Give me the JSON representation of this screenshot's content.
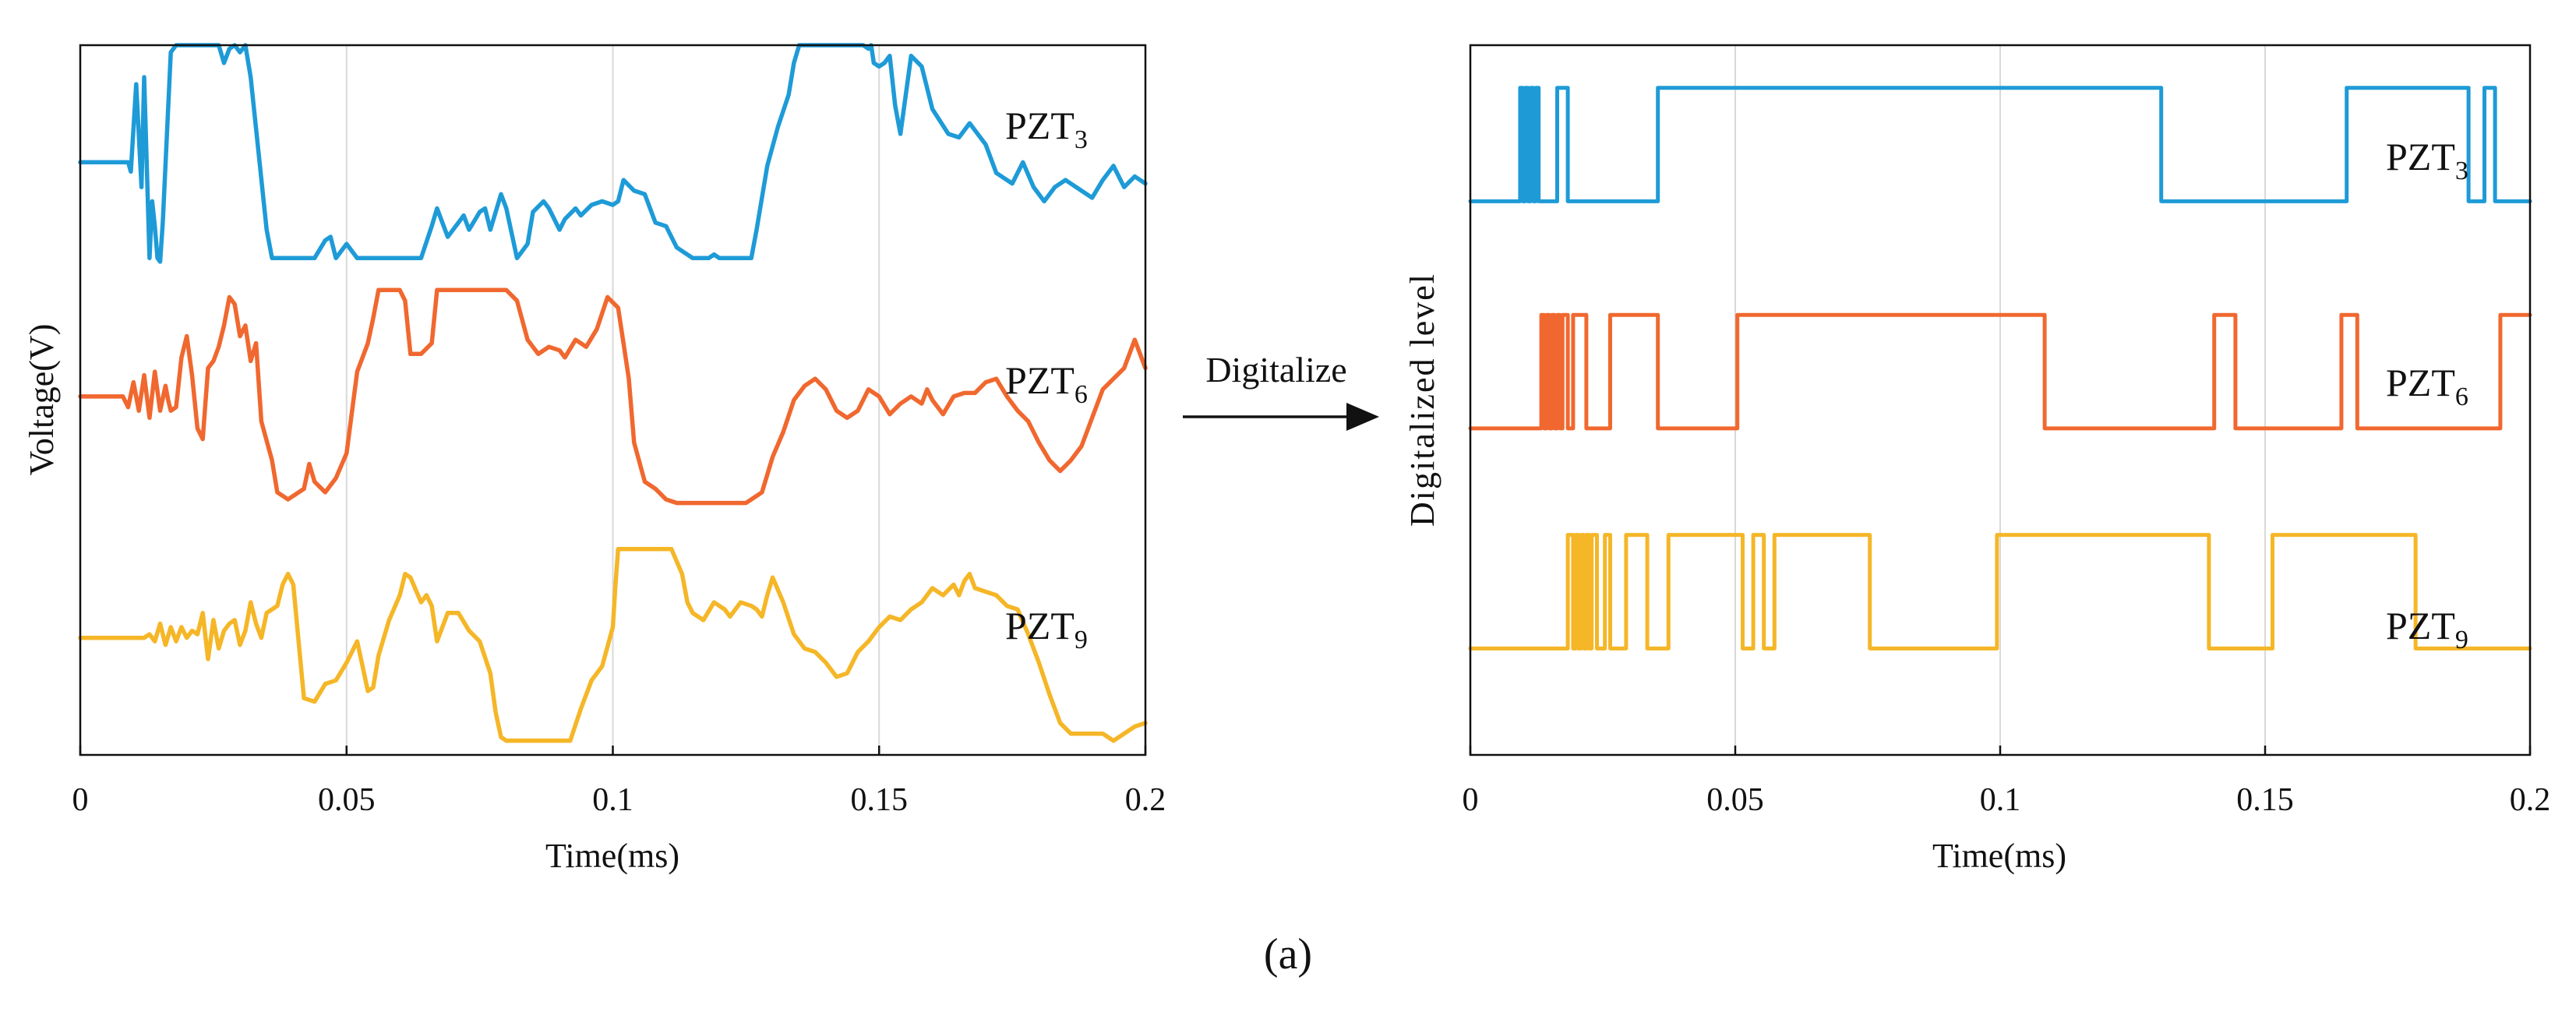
{
  "colors": {
    "pzt3": "#1E9BD7",
    "pzt6": "#F0682F",
    "pzt9": "#F5B627",
    "axis": "#111111",
    "grid": "#D9D9D9",
    "text": "#111111"
  },
  "caption": "(a)",
  "arrow": {
    "label": "Digitalize"
  },
  "chart_data": [
    {
      "type": "line",
      "id": "analog",
      "title": "",
      "xlabel": "Time(ms)",
      "ylabel": "Voltage(V)",
      "xlim": [
        0,
        0.2
      ],
      "xticks": [
        0,
        0.05,
        0.1,
        0.15,
        0.2
      ],
      "xtick_labels": [
        "0",
        "0.05",
        "0.1",
        "0.15",
        "0.2"
      ],
      "ylim": [
        0,
        1
      ],
      "grid": "vertical",
      "series": [
        {
          "name": "PZT3",
          "label_base": "PZT",
          "label_sub": "3",
          "color_key": "pzt3",
          "x": [
            0,
            0.009,
            0.0095,
            0.0105,
            0.0115,
            0.012,
            0.013,
            0.0135,
            0.014,
            0.0145,
            0.015,
            0.0155,
            0.017,
            0.018,
            0.019,
            0.0195,
            0.02,
            0.022,
            0.026,
            0.027,
            0.028,
            0.029,
            0.03,
            0.031,
            0.032,
            0.035,
            0.036,
            0.037,
            0.039,
            0.044,
            0.046,
            0.047,
            0.048,
            0.05,
            0.052,
            0.06,
            0.064,
            0.066,
            0.067,
            0.069,
            0.071,
            0.072,
            0.073,
            0.075,
            0.076,
            0.077,
            0.079,
            0.08,
            0.082,
            0.084,
            0.085,
            0.087,
            0.088,
            0.09,
            0.091,
            0.093,
            0.094,
            0.096,
            0.098,
            0.1,
            0.101,
            0.102,
            0.104,
            0.106,
            0.107,
            0.108,
            0.11,
            0.112,
            0.115,
            0.118,
            0.119,
            0.12,
            0.121,
            0.124,
            0.126,
            0.127,
            0.129,
            0.131,
            0.133,
            0.134,
            0.135,
            0.14,
            0.145,
            0.147,
            0.148,
            0.1485,
            0.149,
            0.15,
            0.151,
            0.152,
            0.153,
            0.154,
            0.156,
            0.158,
            0.16,
            0.163,
            0.165,
            0.167,
            0.17,
            0.172,
            0.175,
            0.177,
            0.179,
            0.181,
            0.183,
            0.185,
            0.188,
            0.19,
            0.192,
            0.194,
            0.196,
            0.198,
            0.2
          ],
          "y": [
            0.835,
            0.835,
            0.822,
            0.945,
            0.8,
            0.955,
            0.7,
            0.78,
            0.745,
            0.7,
            0.695,
            0.75,
            0.99,
            1.0,
            1.0,
            1.0,
            1.0,
            1.0,
            1.0,
            0.975,
            0.995,
            1.0,
            0.99,
            1.0,
            0.955,
            0.74,
            0.7,
            0.7,
            0.7,
            0.7,
            0.725,
            0.73,
            0.7,
            0.72,
            0.7,
            0.7,
            0.7,
            0.745,
            0.77,
            0.73,
            0.75,
            0.76,
            0.74,
            0.765,
            0.77,
            0.74,
            0.79,
            0.77,
            0.7,
            0.72,
            0.765,
            0.78,
            0.77,
            0.74,
            0.755,
            0.77,
            0.76,
            0.775,
            0.78,
            0.775,
            0.78,
            0.81,
            0.795,
            0.79,
            0.77,
            0.75,
            0.745,
            0.715,
            0.7,
            0.7,
            0.705,
            0.7,
            0.7,
            0.7,
            0.7,
            0.74,
            0.83,
            0.885,
            0.93,
            0.975,
            1.0,
            1.0,
            1.0,
            1.0,
            0.995,
            1.0,
            0.975,
            0.97,
            0.975,
            0.985,
            0.915,
            0.875,
            0.985,
            0.97,
            0.91,
            0.875,
            0.87,
            0.89,
            0.86,
            0.82,
            0.805,
            0.835,
            0.8,
            0.78,
            0.8,
            0.81,
            0.795,
            0.785,
            0.81,
            0.83,
            0.8,
            0.815,
            0.805
          ]
        },
        {
          "name": "PZT6",
          "label_base": "PZT",
          "label_sub": "6",
          "color_key": "pzt6",
          "x": [
            0,
            0.008,
            0.009,
            0.01,
            0.011,
            0.012,
            0.013,
            0.014,
            0.015,
            0.016,
            0.0165,
            0.017,
            0.018,
            0.019,
            0.02,
            0.021,
            0.022,
            0.023,
            0.024,
            0.025,
            0.026,
            0.027,
            0.028,
            0.029,
            0.03,
            0.031,
            0.032,
            0.033,
            0.034,
            0.036,
            0.037,
            0.039,
            0.042,
            0.043,
            0.044,
            0.046,
            0.048,
            0.05,
            0.052,
            0.054,
            0.055,
            0.056,
            0.06,
            0.061,
            0.062,
            0.064,
            0.066,
            0.067,
            0.07,
            0.075,
            0.08,
            0.082,
            0.084,
            0.086,
            0.088,
            0.09,
            0.091,
            0.093,
            0.095,
            0.097,
            0.099,
            0.101,
            0.102,
            0.103,
            0.104,
            0.106,
            0.108,
            0.11,
            0.112,
            0.115,
            0.125,
            0.128,
            0.13,
            0.132,
            0.134,
            0.136,
            0.138,
            0.14,
            0.142,
            0.144,
            0.146,
            0.148,
            0.15,
            0.152,
            0.154,
            0.156,
            0.158,
            0.159,
            0.16,
            0.162,
            0.164,
            0.166,
            0.168,
            0.17,
            0.172,
            0.174,
            0.176,
            0.178,
            0.18,
            0.182,
            0.184,
            0.186,
            0.188,
            0.19,
            0.192,
            0.194,
            0.196,
            0.198,
            0.2
          ],
          "y": [
            0.505,
            0.505,
            0.49,
            0.525,
            0.485,
            0.535,
            0.475,
            0.54,
            0.485,
            0.52,
            0.5,
            0.485,
            0.49,
            0.56,
            0.59,
            0.535,
            0.46,
            0.445,
            0.545,
            0.555,
            0.575,
            0.605,
            0.645,
            0.635,
            0.59,
            0.605,
            0.555,
            0.58,
            0.47,
            0.415,
            0.37,
            0.36,
            0.375,
            0.41,
            0.385,
            0.37,
            0.39,
            0.425,
            0.54,
            0.58,
            0.615,
            0.655,
            0.655,
            0.64,
            0.565,
            0.565,
            0.58,
            0.655,
            0.655,
            0.655,
            0.655,
            0.64,
            0.585,
            0.565,
            0.575,
            0.57,
            0.56,
            0.585,
            0.575,
            0.6,
            0.645,
            0.63,
            0.58,
            0.53,
            0.44,
            0.385,
            0.375,
            0.36,
            0.355,
            0.355,
            0.355,
            0.37,
            0.42,
            0.455,
            0.5,
            0.52,
            0.53,
            0.515,
            0.485,
            0.475,
            0.485,
            0.515,
            0.505,
            0.48,
            0.495,
            0.505,
            0.495,
            0.515,
            0.5,
            0.48,
            0.505,
            0.51,
            0.51,
            0.525,
            0.53,
            0.505,
            0.485,
            0.47,
            0.44,
            0.415,
            0.4,
            0.415,
            0.435,
            0.475,
            0.515,
            0.53,
            0.545,
            0.585,
            0.545
          ]
        },
        {
          "name": "PZT9",
          "label_base": "PZT",
          "label_sub": "9",
          "color_key": "pzt9",
          "x": [
            0,
            0.012,
            0.013,
            0.014,
            0.015,
            0.016,
            0.017,
            0.018,
            0.019,
            0.02,
            0.021,
            0.022,
            0.023,
            0.024,
            0.025,
            0.026,
            0.027,
            0.028,
            0.029,
            0.03,
            0.031,
            0.032,
            0.033,
            0.034,
            0.035,
            0.036,
            0.037,
            0.038,
            0.039,
            0.04,
            0.041,
            0.042,
            0.044,
            0.046,
            0.048,
            0.05,
            0.052,
            0.053,
            0.054,
            0.055,
            0.056,
            0.058,
            0.06,
            0.061,
            0.062,
            0.064,
            0.065,
            0.066,
            0.067,
            0.069,
            0.071,
            0.073,
            0.075,
            0.077,
            0.078,
            0.079,
            0.08,
            0.082,
            0.085,
            0.088,
            0.09,
            0.092,
            0.094,
            0.096,
            0.098,
            0.1,
            0.1005,
            0.101,
            0.102,
            0.103,
            0.104,
            0.108,
            0.111,
            0.113,
            0.114,
            0.115,
            0.117,
            0.119,
            0.121,
            0.122,
            0.124,
            0.126,
            0.127,
            0.128,
            0.129,
            0.13,
            0.132,
            0.134,
            0.136,
            0.138,
            0.14,
            0.142,
            0.144,
            0.146,
            0.148,
            0.15,
            0.152,
            0.154,
            0.156,
            0.158,
            0.16,
            0.162,
            0.164,
            0.165,
            0.166,
            0.167,
            0.168,
            0.17,
            0.172,
            0.174,
            0.176,
            0.178,
            0.18,
            0.182,
            0.184,
            0.186,
            0.188,
            0.19,
            0.192,
            0.194,
            0.196,
            0.198,
            0.2
          ],
          "y": [
            0.165,
            0.165,
            0.17,
            0.16,
            0.185,
            0.155,
            0.18,
            0.16,
            0.18,
            0.165,
            0.175,
            0.17,
            0.2,
            0.135,
            0.19,
            0.15,
            0.175,
            0.185,
            0.19,
            0.155,
            0.175,
            0.215,
            0.185,
            0.165,
            0.2,
            0.205,
            0.21,
            0.24,
            0.255,
            0.24,
            0.16,
            0.08,
            0.075,
            0.1,
            0.105,
            0.13,
            0.16,
            0.125,
            0.09,
            0.095,
            0.14,
            0.19,
            0.225,
            0.255,
            0.25,
            0.215,
            0.225,
            0.21,
            0.16,
            0.2,
            0.2,
            0.175,
            0.16,
            0.115,
            0.06,
            0.025,
            0.02,
            0.02,
            0.02,
            0.02,
            0.02,
            0.02,
            0.065,
            0.105,
            0.125,
            0.18,
            0.24,
            0.29,
            0.29,
            0.29,
            0.29,
            0.29,
            0.29,
            0.255,
            0.215,
            0.2,
            0.19,
            0.215,
            0.205,
            0.195,
            0.215,
            0.21,
            0.205,
            0.195,
            0.225,
            0.25,
            0.215,
            0.17,
            0.15,
            0.145,
            0.13,
            0.11,
            0.115,
            0.145,
            0.16,
            0.18,
            0.195,
            0.19,
            0.205,
            0.215,
            0.235,
            0.225,
            0.24,
            0.225,
            0.245,
            0.255,
            0.235,
            0.23,
            0.225,
            0.21,
            0.205,
            0.17,
            0.13,
            0.085,
            0.045,
            0.03,
            0.03,
            0.03,
            0.03,
            0.02,
            0.03,
            0.04,
            0.045
          ]
        }
      ]
    },
    {
      "type": "line",
      "id": "digital",
      "title": "",
      "xlabel": "Time(ms)",
      "ylabel": "Digitalized level",
      "xlim": [
        0,
        0.2
      ],
      "xticks": [
        0,
        0.05,
        0.1,
        0.15,
        0.2
      ],
      "xtick_labels": [
        "0",
        "0.05",
        "0.1",
        "0.15",
        "0.2"
      ],
      "ylim": [
        0,
        1
      ],
      "grid": "vertical",
      "step": true,
      "series": [
        {
          "name": "PZT3",
          "label_base": "PZT",
          "label_sub": "3",
          "color_key": "pzt3",
          "low": 0.78,
          "high": 0.94,
          "transitions": [
            0.0094,
            0.0099,
            0.0104,
            0.0109,
            0.0114,
            0.0119,
            0.0124,
            0.0129,
            0.0164,
            0.0184,
            0.0354,
            0.1304,
            0.1654,
            0.1884,
            0.1914,
            0.1934
          ],
          "start_level": 0
        },
        {
          "name": "PZT6",
          "label_base": "PZT",
          "label_sub": "6",
          "color_key": "pzt6",
          "low": 0.46,
          "high": 0.62,
          "transitions": [
            0.0134,
            0.0139,
            0.0144,
            0.0149,
            0.0154,
            0.0159,
            0.0164,
            0.0169,
            0.0174,
            0.0184,
            0.0194,
            0.0219,
            0.0264,
            0.0354,
            0.0504,
            0.1084,
            0.1404,
            0.1444,
            0.1644,
            0.1674,
            0.1944
          ],
          "start_level": 0
        },
        {
          "name": "PZT9",
          "label_base": "PZT",
          "label_sub": "9",
          "color_key": "pzt9",
          "low": 0.15,
          "high": 0.31,
          "transitions": [
            0.0184,
            0.0194,
            0.0199,
            0.0204,
            0.0209,
            0.0214,
            0.0219,
            0.0224,
            0.0229,
            0.0239,
            0.0254,
            0.0264,
            0.0294,
            0.0334,
            0.0374,
            0.0514,
            0.0534,
            0.0554,
            0.0574,
            0.0754,
            0.0994,
            0.1394,
            0.1514,
            0.1784
          ],
          "start_level": 0
        }
      ]
    }
  ]
}
